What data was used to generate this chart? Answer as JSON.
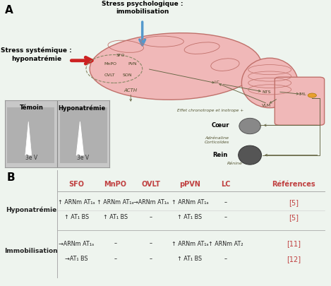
{
  "panel_A_label": "A",
  "panel_B_label": "B",
  "bg_color_A": "#eef4ee",
  "bg_color_B": "#dce8f0",
  "stress_psycho_text": "Stress psychologique :\nimmobilisation",
  "stress_sys_text": "Stress systémique :\nhyponatrémie",
  "brain_color": "#f0b8b8",
  "brain_outline": "#c0706a",
  "blue_arrow_color": "#5599cc",
  "red_arrow_color": "#cc2222",
  "acth_label": "ACTH",
  "effet_label": "Effet chronotrope et inotrope +",
  "coeur_label": "Cœur",
  "adrenaline_label": "Adrénaline\nCorticoïdes",
  "rein_label": "Rein",
  "renine_label": "Rénine",
  "temoin_label": "Témoin",
  "hypo_label": "Hyponatrémie",
  "troisieme_v": "3e V",
  "table_header_color": "#c04040",
  "table_headers": [
    "SFO",
    "MnPO",
    "OVLT",
    "pPVN",
    "LC",
    "Références"
  ],
  "row_labels": [
    "Hyponatrémie",
    "Immobilisation"
  ],
  "row_label_color": "#222222",
  "table_bg": "#dce8f0",
  "ref_color": "#c04040",
  "cells": [
    [
      "↑ ARNm AT₁ₐ",
      "↑ ARNm AT₁ₐ",
      "→ARNm AT₁ₐ",
      "↑ ARNm AT₁ₐ",
      "–",
      "[5]"
    ],
    [
      "↑ AT₁ BS",
      "↑ AT₁ BS",
      "–",
      "↑ AT₁ BS",
      "–",
      "[5]"
    ],
    [
      "→ARNm AT₁ₐ",
      "–",
      "–",
      "↑ ARNm AT₁ₐ",
      "↑ ARNm AT₂",
      "[11]"
    ],
    [
      "→AT₁ BS",
      "–",
      "–",
      "↑ AT₁ BS",
      "–",
      "[12]"
    ]
  ],
  "line_color": "#aaaaaa",
  "iml_dot_color": "#e8a030"
}
